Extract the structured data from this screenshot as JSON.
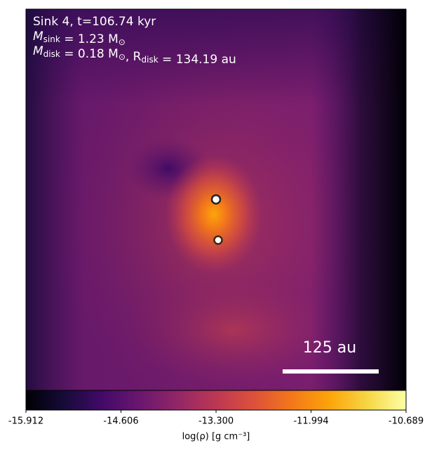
{
  "chart_data": {
    "type": "density-map",
    "annotations": [
      [
        "Sink 4, t=106.74 kyr"
      ],
      [
        "M",
        {
          "sub": "sink"
        },
        " = 1.23 M",
        {
          "sub": "⊙"
        }
      ],
      [
        "M",
        {
          "sub": "disk"
        },
        " = 0.18 M",
        {
          "sub": "⊙"
        },
        ", R",
        {
          "sub": "disk"
        },
        " = 134.19 au"
      ]
    ],
    "scale_bar_label": "125 au",
    "colorbar_label": "log(ρ) [g cm⁻³]",
    "colormap": "inferno",
    "clim": [
      -15.912,
      -10.689
    ],
    "cticks": [
      -15.912,
      -14.606,
      {
        "value": -13.3,
        "label": "-13.300"
      },
      -11.994,
      -10.689
    ]
  }
}
